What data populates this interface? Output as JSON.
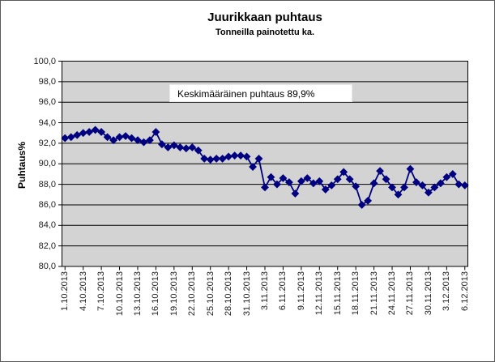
{
  "chart_data": {
    "type": "line",
    "title": "Juurikkaan puhtaus",
    "subtitle": "Tonneilla painotettu ka.",
    "ylabel": "Puhtaus%",
    "ylim": [
      80,
      100
    ],
    "ytick_step": 2,
    "ytick_labels": [
      "100,0",
      "98,0",
      "96,0",
      "94,0",
      "92,0",
      "90,0",
      "88,0",
      "86,0",
      "84,0",
      "82,0",
      "80,0"
    ],
    "grid": true,
    "legend": "none",
    "plot_bg": "#d3d3d3",
    "annotation": "Keskimääräinen puhtaus 89,9%",
    "xtick_every": 3,
    "xtick_labels": [
      "1.10.2013",
      "4.10.2013",
      "7.10.2013",
      "10.10.2013",
      "13.10.2013",
      "16.10.2013",
      "19.10.2013",
      "22.10.2013",
      "25.10.2013",
      "28.10.2013",
      "31.10.2013",
      "3.11.2013",
      "6.11.2013",
      "9.11.2013",
      "12.11.2013",
      "15.11.2013",
      "18.11.2013",
      "21.11.2013",
      "24.11.2013",
      "27.11.2013",
      "30.11.2013",
      "3.12.2013",
      "6.12.2013"
    ],
    "series": [
      {
        "color": "#000080",
        "marker": "diamond",
        "x": [
          "1.10.2013",
          "2.10.2013",
          "3.10.2013",
          "4.10.2013",
          "5.10.2013",
          "6.10.2013",
          "7.10.2013",
          "8.10.2013",
          "9.10.2013",
          "10.10.2013",
          "11.10.2013",
          "12.10.2013",
          "13.10.2013",
          "14.10.2013",
          "15.10.2013",
          "16.10.2013",
          "17.10.2013",
          "18.10.2013",
          "19.10.2013",
          "20.10.2013",
          "21.10.2013",
          "22.10.2013",
          "23.10.2013",
          "24.10.2013",
          "25.10.2013",
          "26.10.2013",
          "27.10.2013",
          "28.10.2013",
          "29.10.2013",
          "30.10.2013",
          "31.10.2013",
          "1.11.2013",
          "2.11.2013",
          "3.11.2013",
          "4.11.2013",
          "5.11.2013",
          "6.11.2013",
          "7.11.2013",
          "8.11.2013",
          "9.11.2013",
          "10.11.2013",
          "11.11.2013",
          "12.11.2013",
          "13.11.2013",
          "14.11.2013",
          "15.11.2013",
          "16.11.2013",
          "17.11.2013",
          "18.11.2013",
          "19.11.2013",
          "20.11.2013",
          "21.11.2013",
          "22.11.2013",
          "23.11.2013",
          "24.11.2013",
          "25.11.2013",
          "26.11.2013",
          "27.11.2013",
          "28.11.2013",
          "29.11.2013",
          "30.11.2013",
          "1.12.2013",
          "2.12.2013",
          "3.12.2013",
          "4.12.2013",
          "5.12.2013",
          "6.12.2013"
        ],
        "values": [
          92.5,
          92.6,
          92.8,
          93.0,
          93.1,
          93.3,
          93.1,
          92.6,
          92.3,
          92.6,
          92.7,
          92.5,
          92.3,
          92.1,
          92.3,
          93.1,
          91.9,
          91.6,
          91.8,
          91.6,
          91.5,
          91.6,
          91.3,
          90.5,
          90.4,
          90.5,
          90.5,
          90.7,
          90.8,
          90.8,
          90.7,
          89.7,
          90.5,
          87.7,
          88.7,
          88.0,
          88.6,
          88.2,
          87.1,
          88.3,
          88.6,
          88.1,
          88.3,
          87.5,
          87.9,
          88.5,
          89.2,
          88.5,
          87.8,
          86.0,
          86.4,
          88.1,
          89.3,
          88.5,
          87.7,
          87.0,
          87.7,
          89.5,
          88.2,
          87.9,
          87.2,
          87.7,
          88.1,
          88.7,
          89.0,
          88.0,
          87.9
        ]
      }
    ]
  }
}
